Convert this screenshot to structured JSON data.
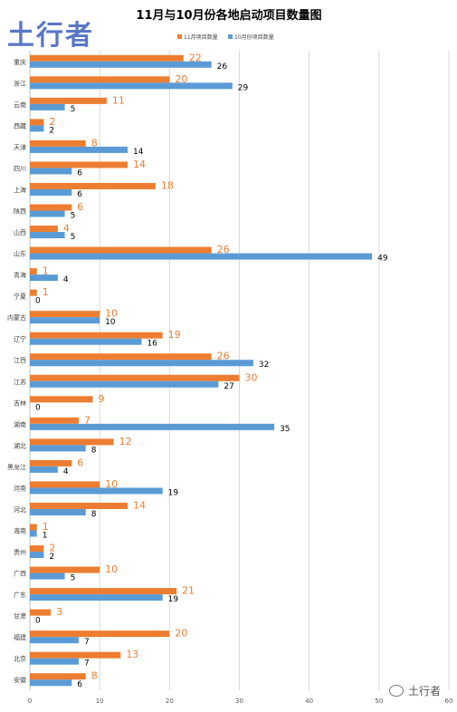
{
  "logo_text": "土行者",
  "watermark_text": "土行者",
  "chart_data": {
    "type": "bar",
    "orientation": "horizontal",
    "title": "11月与10月份各地启动项目数量图",
    "legend_position": "top-right",
    "categories": [
      "重庆",
      "浙江",
      "云南",
      "西藏",
      "天津",
      "四川",
      "上海",
      "陕西",
      "山西",
      "山东",
      "青海",
      "宁夏",
      "内蒙古",
      "辽宁",
      "江西",
      "江苏",
      "吉林",
      "湖南",
      "湖北",
      "黑龙江",
      "河南",
      "河北",
      "海南",
      "贵州",
      "广西",
      "广东",
      "甘肃",
      "福建",
      "北京",
      "安徽"
    ],
    "series": [
      {
        "name": "11月项目数量",
        "color": "#ed7d31",
        "values": [
          22,
          20,
          11,
          2,
          8,
          14,
          18,
          6,
          4,
          26,
          1,
          1,
          10,
          19,
          26,
          30,
          9,
          7,
          12,
          6,
          10,
          14,
          1,
          2,
          10,
          21,
          3,
          20,
          13,
          8
        ]
      },
      {
        "name": "10月份项目数量",
        "color": "#5b9bd5",
        "values": [
          26,
          29,
          5,
          2,
          14,
          6,
          6,
          5,
          5,
          49,
          4,
          0,
          10,
          16,
          32,
          27,
          0,
          35,
          8,
          4,
          19,
          8,
          1,
          2,
          5,
          19,
          0,
          7,
          7,
          6
        ]
      }
    ],
    "xlim": [
      0,
      60
    ],
    "xticks": [
      0,
      10,
      20,
      30,
      40,
      50,
      60
    ],
    "grid": true
  }
}
